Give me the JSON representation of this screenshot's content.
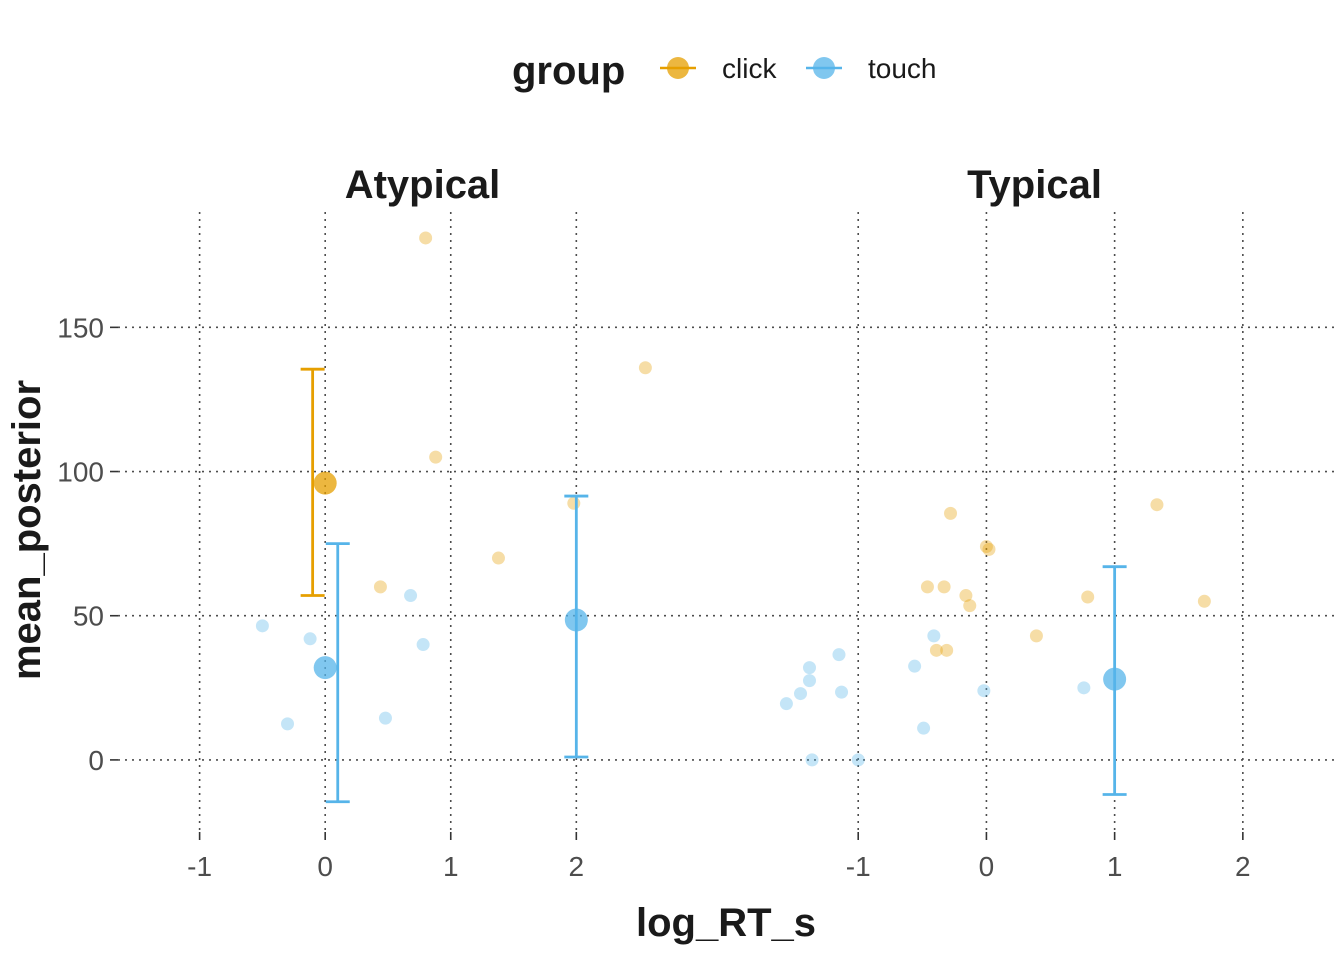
{
  "chart_data": {
    "type": "scatter",
    "xlabel": "log_RT_s",
    "ylabel": "mean_posterior",
    "legend": {
      "title": "group",
      "placement": "top"
    },
    "series": [
      {
        "name": "click",
        "color": "#E69F00"
      },
      {
        "name": "touch",
        "color": "#56B4E9"
      }
    ],
    "grid": true,
    "facets": [
      {
        "name": "Atypical",
        "xlim": [
          -1.65,
          3.2
        ],
        "ylim": [
          -25,
          190
        ],
        "x_ticks": [
          -1,
          0,
          1,
          2
        ],
        "y_ticks": [
          0,
          50,
          100,
          150
        ],
        "raw_points": {
          "click": [
            [
              0.8,
              181
            ],
            [
              2.55,
              136
            ],
            [
              0.88,
              105
            ],
            [
              1.98,
              89
            ],
            [
              1.38,
              70
            ],
            [
              0.44,
              60
            ]
          ],
          "touch": [
            [
              -0.5,
              46.5
            ],
            [
              -0.12,
              42
            ],
            [
              0.68,
              57
            ],
            [
              0.78,
              40
            ],
            [
              -0.3,
              12.5
            ],
            [
              0.48,
              14.5
            ]
          ]
        },
        "summary": [
          {
            "group": "click",
            "x": 0.0,
            "mean": 96,
            "lower": 57,
            "upper": 135.5,
            "bar_x": -0.1
          },
          {
            "group": "touch",
            "x": 0.0,
            "mean": 32,
            "lower": -14.5,
            "upper": 75,
            "bar_x": 0.1
          },
          {
            "group": "touch",
            "x": 2.0,
            "mean": 48.5,
            "lower": 1,
            "upper": 91.5,
            "bar_x": 2.0
          }
        ]
      },
      {
        "name": "Typical",
        "xlim": [
          -2.0,
          2.75
        ],
        "ylim": [
          -25,
          190
        ],
        "x_ticks": [
          -1,
          0,
          1,
          2
        ],
        "y_ticks": [
          0,
          50,
          100,
          150
        ],
        "raw_points": {
          "click": [
            [
              -0.28,
              85.5
            ],
            [
              1.33,
              88.5
            ],
            [
              0.0,
              74
            ],
            [
              0.02,
              73
            ],
            [
              -0.46,
              60
            ],
            [
              -0.33,
              60
            ],
            [
              -0.16,
              57
            ],
            [
              -0.13,
              53.5
            ],
            [
              0.79,
              56.5
            ],
            [
              1.7,
              55
            ],
            [
              0.39,
              43
            ],
            [
              -0.39,
              38
            ],
            [
              -0.31,
              38
            ]
          ],
          "touch": [
            [
              -1.15,
              36.5
            ],
            [
              -1.38,
              32
            ],
            [
              -1.38,
              27.5
            ],
            [
              -1.45,
              23
            ],
            [
              -1.56,
              19.5
            ],
            [
              -1.13,
              23.5
            ],
            [
              -1.36,
              0
            ],
            [
              -1.0,
              0
            ],
            [
              -0.41,
              43
            ],
            [
              -0.56,
              32.5
            ],
            [
              -0.49,
              11
            ],
            [
              -0.02,
              24
            ],
            [
              0.76,
              25
            ]
          ]
        },
        "summary": [
          {
            "group": "touch",
            "x": 1.0,
            "mean": 28,
            "lower": -12,
            "upper": 67,
            "bar_x": 1.0
          }
        ]
      }
    ]
  }
}
